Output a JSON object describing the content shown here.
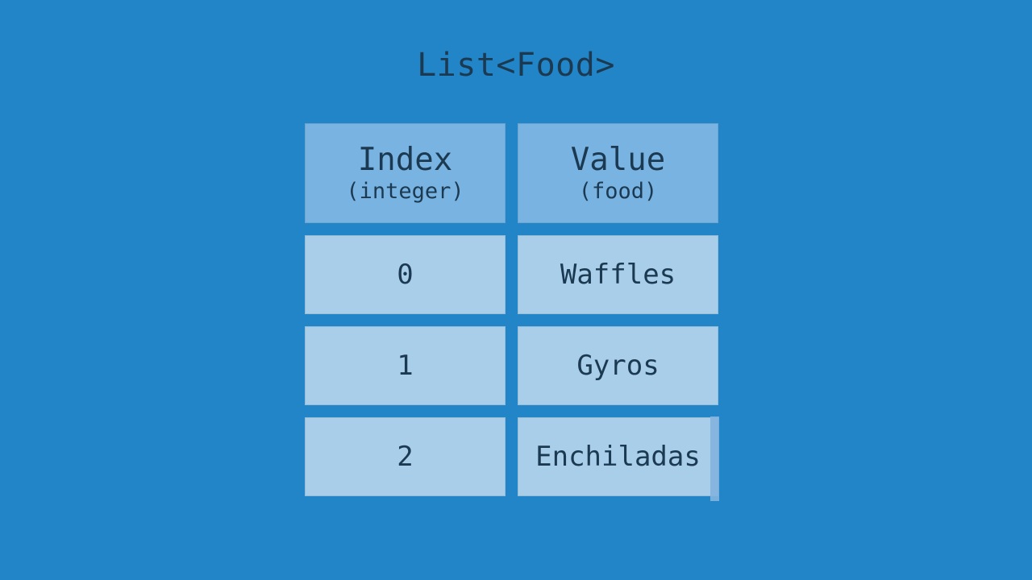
{
  "title": "List<Food>",
  "colors": {
    "background": "#2285C8",
    "header_fill": "#79B3E1",
    "cell_fill": "#A9CEE9",
    "text": "#1B3A52",
    "artifact_strip": "#82B4DF"
  },
  "table": {
    "headers": [
      {
        "label": "Index",
        "sublabel": "(integer)"
      },
      {
        "label": "Value",
        "sublabel": "(food)"
      }
    ],
    "rows": [
      {
        "index": "0",
        "value": "Waffles"
      },
      {
        "index": "1",
        "value": "Gyros"
      },
      {
        "index": "2",
        "value": "Enchiladas"
      }
    ]
  }
}
